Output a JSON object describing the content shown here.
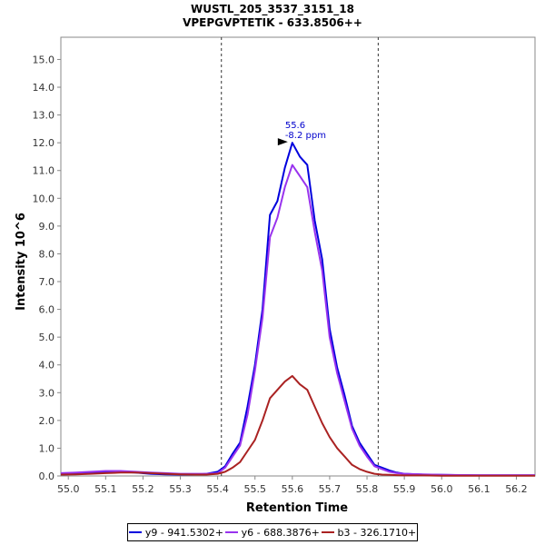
{
  "chart_data": {
    "type": "line",
    "title": "WUSTL_205_3537_3151_18",
    "subtitle": "VPEPGVPTETIK - 633.8506++",
    "xlabel": "Retention Time",
    "ylabel": "Intensity 10^6",
    "xlim": [
      54.98,
      56.25
    ],
    "ylim": [
      0,
      15.8
    ],
    "x_ticks": [
      "55.0",
      "55.1",
      "55.2",
      "55.3",
      "55.4",
      "55.5",
      "55.6",
      "55.7",
      "55.8",
      "55.9",
      "56.0",
      "56.1",
      "56.2"
    ],
    "y_ticks": [
      "0.0",
      "1.0",
      "2.0",
      "3.0",
      "4.0",
      "5.0",
      "6.0",
      "7.0",
      "8.0",
      "9.0",
      "10.0",
      "11.0",
      "12.0",
      "13.0",
      "14.0",
      "15.0"
    ],
    "grid": false,
    "legend_position": "bottom",
    "boundaries": [
      55.41,
      55.83
    ],
    "peak_annotation": {
      "x": 55.6,
      "y": 12.0,
      "line1": "55.6",
      "line2": "-8.2 ppm",
      "color": "#0000cc"
    },
    "series": [
      {
        "name": "y9 - 941.5302+",
        "color": "#0000dd",
        "x": [
          54.98,
          55.02,
          55.06,
          55.1,
          55.14,
          55.18,
          55.22,
          55.26,
          55.3,
          55.34,
          55.37,
          55.4,
          55.42,
          55.44,
          55.46,
          55.48,
          55.5,
          55.52,
          55.54,
          55.56,
          55.58,
          55.6,
          55.62,
          55.64,
          55.66,
          55.68,
          55.7,
          55.72,
          55.74,
          55.76,
          55.78,
          55.8,
          55.82,
          55.84,
          55.86,
          55.88,
          55.9,
          55.95,
          56.0,
          56.1,
          56.2,
          56.25
        ],
        "y": [
          0.05,
          0.08,
          0.12,
          0.15,
          0.15,
          0.12,
          0.08,
          0.06,
          0.05,
          0.05,
          0.08,
          0.15,
          0.35,
          0.8,
          1.2,
          2.5,
          4.0,
          6.0,
          9.4,
          9.9,
          11.1,
          12.0,
          11.5,
          11.2,
          9.2,
          7.8,
          5.3,
          3.9,
          2.9,
          1.8,
          1.2,
          0.8,
          0.4,
          0.3,
          0.2,
          0.12,
          0.08,
          0.05,
          0.04,
          0.02,
          0.02,
          0.02
        ]
      },
      {
        "name": "y6 - 688.3876+",
        "color": "#9933ee",
        "x": [
          54.98,
          55.02,
          55.06,
          55.1,
          55.14,
          55.18,
          55.22,
          55.26,
          55.3,
          55.34,
          55.37,
          55.4,
          55.42,
          55.44,
          55.46,
          55.48,
          55.5,
          55.52,
          55.54,
          55.56,
          55.58,
          55.6,
          55.62,
          55.64,
          55.66,
          55.68,
          55.7,
          55.72,
          55.74,
          55.76,
          55.78,
          55.8,
          55.82,
          55.84,
          55.86,
          55.88,
          55.9,
          55.95,
          56.0,
          56.1,
          56.2,
          56.25
        ],
        "y": [
          0.1,
          0.12,
          0.15,
          0.18,
          0.18,
          0.15,
          0.12,
          0.1,
          0.08,
          0.08,
          0.08,
          0.1,
          0.3,
          0.7,
          1.1,
          2.2,
          3.8,
          5.7,
          8.6,
          9.3,
          10.4,
          11.2,
          10.8,
          10.4,
          8.8,
          7.4,
          5.0,
          3.7,
          2.7,
          1.7,
          1.1,
          0.7,
          0.35,
          0.25,
          0.15,
          0.1,
          0.08,
          0.06,
          0.04,
          0.03,
          0.03,
          0.03
        ]
      },
      {
        "name": "b3 - 326.1710+",
        "color": "#aa2222",
        "x": [
          54.98,
          55.02,
          55.06,
          55.1,
          55.14,
          55.18,
          55.22,
          55.26,
          55.3,
          55.34,
          55.37,
          55.4,
          55.42,
          55.44,
          55.46,
          55.48,
          55.5,
          55.52,
          55.54,
          55.56,
          55.58,
          55.6,
          55.62,
          55.64,
          55.66,
          55.68,
          55.7,
          55.72,
          55.74,
          55.76,
          55.78,
          55.8,
          55.82,
          55.84,
          55.86,
          55.88,
          55.9,
          55.95,
          56.0,
          56.1,
          56.2,
          56.25
        ],
        "y": [
          0.05,
          0.06,
          0.08,
          0.1,
          0.12,
          0.12,
          0.1,
          0.08,
          0.06,
          0.05,
          0.05,
          0.08,
          0.15,
          0.3,
          0.5,
          0.9,
          1.3,
          2.0,
          2.8,
          3.1,
          3.4,
          3.6,
          3.3,
          3.1,
          2.5,
          1.9,
          1.4,
          1.0,
          0.7,
          0.4,
          0.25,
          0.15,
          0.08,
          0.05,
          0.04,
          0.03,
          0.02,
          0.02,
          0.01,
          0.01,
          0.01,
          0.01
        ]
      }
    ]
  }
}
